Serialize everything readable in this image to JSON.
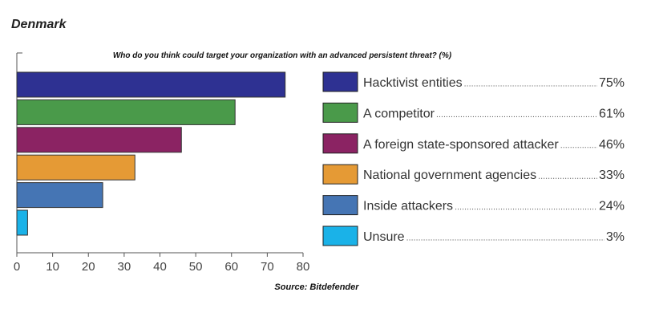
{
  "header": {
    "country": "Denmark",
    "question": "Who do you think could target your organization with an advanced persistent threat? (%)",
    "source": "Source: Bitdefender"
  },
  "chart_data": {
    "type": "bar",
    "orientation": "horizontal",
    "title": "Who do you think could target your organization with an advanced persistent threat? (%)",
    "categories": [
      "Hacktivist entities",
      "A competitor",
      "A foreign state-sponsored attacker",
      "National government agencies",
      "Inside attackers",
      "Unsure"
    ],
    "values": [
      75,
      61,
      46,
      33,
      24,
      3
    ],
    "value_labels": [
      "75%",
      "61%",
      "46%",
      "33%",
      "24%",
      "3%"
    ],
    "colors": [
      "#2e3192",
      "#4a9a4a",
      "#8b2363",
      "#e59a35",
      "#4575b4",
      "#1ab2e8"
    ],
    "xlim": [
      0,
      80
    ],
    "xticks": [
      0,
      10,
      20,
      30,
      40,
      50,
      60,
      70,
      80
    ],
    "xtick_labels": [
      "0",
      "10",
      "20",
      "30",
      "40",
      "50",
      "60",
      "70",
      "80"
    ],
    "grid": false,
    "legend_position": "right"
  }
}
